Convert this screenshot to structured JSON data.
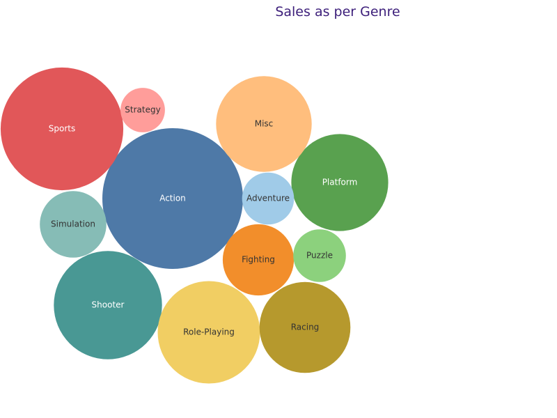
{
  "chart_data": {
    "type": "bubble",
    "title": "Sales as per Genre",
    "categories": [
      "Action",
      "Sports",
      "Shooter",
      "Role-Playing",
      "Platform",
      "Misc",
      "Racing",
      "Fighting",
      "Simulation",
      "Puzzle",
      "Adventure",
      "Strategy"
    ],
    "series": [
      {
        "values": [
          1751.18,
          1330.93,
          1037.37,
          927.37,
          831.37,
          809.96,
          732.04,
          448.91,
          392.2,
          244.95,
          239.04,
          175.12
        ]
      }
    ],
    "colors": {
      "Action": "#4e79a7",
      "Sports": "#e15759",
      "Shooter": "#499894",
      "Role-Playing": "#f1ce63",
      "Platform": "#59a14f",
      "Misc": "#ffbe7d",
      "Racing": "#b6992d",
      "Fighting": "#f28e2b",
      "Simulation": "#86bcb6",
      "Puzzle": "#8cd17d",
      "Adventure": "#a0cbe8",
      "Strategy": "#ff9d9a"
    },
    "label_colors": {
      "Action": "#ffffff",
      "Sports": "#ffffff",
      "Shooter": "#ffffff",
      "Role-Playing": "#333333",
      "Platform": "#ffffff",
      "Misc": "#333333",
      "Racing": "#333333",
      "Fighting": "#333333",
      "Simulation": "#333333",
      "Puzzle": "#333333",
      "Adventure": "#333333",
      "Strategy": "#333333"
    }
  }
}
